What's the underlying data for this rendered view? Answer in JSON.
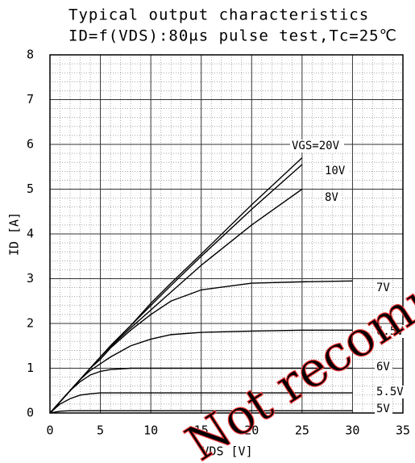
{
  "chart_data": {
    "type": "line",
    "title": "Typical output characteristics",
    "subtitle": "ID=f(VDS):80μs pulse test,Tc=25℃",
    "x_label": "VDS [V]",
    "y_label": "ID [A]",
    "watermark": "Not recomm",
    "x": [
      0,
      1,
      2,
      3,
      4,
      5,
      6,
      8,
      10,
      12,
      15,
      20,
      25,
      30
    ],
    "series": [
      {
        "name": "VGS=20V",
        "color": "#000000",
        "values": [
          0,
          0.25,
          0.5,
          0.75,
          1.0,
          1.25,
          1.5,
          1.95,
          2.45,
          2.9,
          3.55,
          4.65,
          5.7,
          null
        ]
      },
      {
        "name": "10V",
        "color": "#000000",
        "values": [
          0,
          0.25,
          0.5,
          0.75,
          1.0,
          1.25,
          1.5,
          1.95,
          2.4,
          2.85,
          3.5,
          4.55,
          5.55,
          null
        ]
      },
      {
        "name": "8V",
        "color": "#000000",
        "values": [
          0,
          0.25,
          0.5,
          0.75,
          1.0,
          1.25,
          1.48,
          1.9,
          2.3,
          2.7,
          3.3,
          4.2,
          5.0,
          null
        ]
      },
      {
        "name": "7V",
        "color": "#000000",
        "values": [
          0,
          0.25,
          0.5,
          0.75,
          1.0,
          1.2,
          1.45,
          1.85,
          2.2,
          2.5,
          2.75,
          2.9,
          2.93,
          2.95
        ]
      },
      {
        "name": "6.5V",
        "color": "#000000",
        "values": [
          0,
          0.25,
          0.5,
          0.75,
          0.95,
          1.1,
          1.25,
          1.5,
          1.65,
          1.75,
          1.8,
          1.83,
          1.85,
          1.85
        ]
      },
      {
        "name": "6V",
        "color": "#000000",
        "values": [
          0,
          0.25,
          0.5,
          0.7,
          0.85,
          0.93,
          0.97,
          1.0,
          1.0,
          1.0,
          1.0,
          1.0,
          1.0,
          1.0
        ]
      },
      {
        "name": "5.5V",
        "color": "#000000",
        "values": [
          0,
          0.2,
          0.32,
          0.4,
          0.43,
          0.45,
          0.45,
          0.45,
          0.45,
          0.45,
          0.45,
          0.45,
          0.45,
          0.45
        ]
      },
      {
        "name": "5V",
        "color": "#000000",
        "values": [
          0,
          0.04,
          0.05,
          0.05,
          0.05,
          0.05,
          0.05,
          0.05,
          0.05,
          0.05,
          0.05,
          0.05,
          0.05,
          0.05
        ]
      }
    ],
    "xlim": [
      0,
      35
    ],
    "xticks": [
      0,
      5,
      10,
      15,
      20,
      25,
      30,
      35
    ],
    "ylim": [
      0,
      8
    ],
    "yticks": [
      0,
      1,
      2,
      3,
      4,
      5,
      6,
      7,
      8
    ],
    "grid": true
  }
}
